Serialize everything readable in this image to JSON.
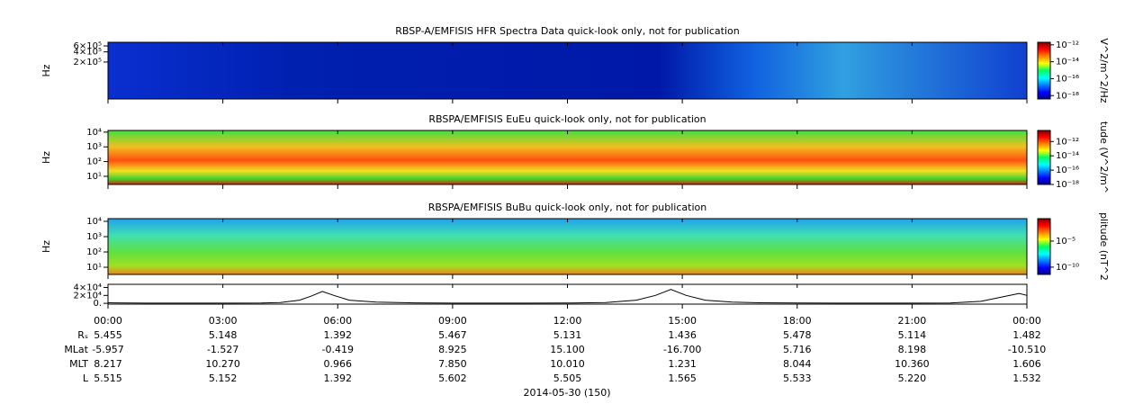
{
  "chart_data": [
    {
      "type": "spectrogram",
      "title": "RBSP-A/EMFISIS  HFR Spectra Data quick-look only, not for publication",
      "ylabel": "Hz",
      "log_y": true,
      "ylim": [
        16000,
        770000
      ],
      "yticks": [
        {
          "value": 600000,
          "label": "6×10⁵"
        },
        {
          "value": 400000,
          "label": "4×10⁵"
        },
        {
          "value": 200000,
          "label": "2×10⁵"
        }
      ],
      "colorbar": {
        "label": "V^2/m^2/Hz",
        "log": true,
        "clim": [
          4e-19,
          2e-12
        ],
        "ticks": [
          {
            "value": 1e-12,
            "label": "10⁻¹²"
          },
          {
            "value": 1e-14,
            "label": "10⁻¹⁴"
          },
          {
            "value": 1e-16,
            "label": "10⁻¹⁶"
          },
          {
            "value": 1e-18,
            "label": "10⁻¹⁸"
          }
        ]
      }
    },
    {
      "type": "spectrogram",
      "title": "RBSPA/EMFISIS  EuEu quick-look only, not for publication",
      "ylabel": "Hz",
      "log_y": true,
      "ylim": [
        2.8,
        13000
      ],
      "yticks": [
        {
          "value": 10000,
          "label": "10⁴"
        },
        {
          "value": 1000,
          "label": "10³"
        },
        {
          "value": 100,
          "label": "10²"
        },
        {
          "value": 10,
          "label": "10¹"
        }
      ],
      "colorbar": {
        "label": "tude (V^2/m^",
        "log": true,
        "clim": [
          1e-18,
          3.5e-11
        ],
        "ticks": [
          {
            "value": 1e-12,
            "label": "10⁻¹²"
          },
          {
            "value": 1e-14,
            "label": "10⁻¹⁴"
          },
          {
            "value": 1e-16,
            "label": "10⁻¹⁶"
          },
          {
            "value": 1e-18,
            "label": "10⁻¹⁸"
          }
        ]
      }
    },
    {
      "type": "spectrogram",
      "title": "RBSPA/EMFISIS  BuBu quick-look only, not for publication",
      "ylabel": "Hz",
      "log_y": true,
      "ylim": [
        3.4,
        15000
      ],
      "yticks": [
        {
          "value": 10000,
          "label": "10⁴"
        },
        {
          "value": 1000,
          "label": "10³"
        },
        {
          "value": 100,
          "label": "10²"
        },
        {
          "value": 10,
          "label": "10¹"
        }
      ],
      "colorbar": {
        "label": "plitude (nT^2",
        "log": true,
        "clim": [
          4e-12,
          0.2
        ],
        "ticks": [
          {
            "value": 1e-05,
            "label": "10⁻⁵"
          },
          {
            "value": 1e-10,
            "label": "10⁻¹⁰"
          }
        ]
      }
    },
    {
      "type": "line",
      "ylim": [
        -2000,
        48000
      ],
      "color": "#000000",
      "yticks": [
        {
          "value": 40000,
          "label": "4×10⁴"
        },
        {
          "value": 20000,
          "label": "2×10⁴"
        },
        {
          "value": 0,
          "label": "0."
        }
      ],
      "x": [
        0,
        1,
        2,
        3,
        4,
        4.5,
        5,
        5.3,
        5.6,
        5.9,
        6.3,
        7,
        8,
        9,
        10,
        11,
        12,
        13,
        13.8,
        14.3,
        14.7,
        15.1,
        15.6,
        16.3,
        17,
        18,
        19,
        20,
        21,
        22,
        22.8,
        23.3,
        23.8,
        24
      ],
      "values": [
        1500,
        600,
        400,
        400,
        800,
        2000,
        8000,
        18000,
        30000,
        20000,
        8000,
        3000,
        1200,
        600,
        500,
        600,
        800,
        2000,
        8000,
        20000,
        35000,
        20000,
        8000,
        3000,
        1500,
        800,
        500,
        500,
        600,
        1000,
        5000,
        15000,
        25000,
        20000
      ]
    }
  ],
  "time_axis": {
    "xlim": [
      0,
      24
    ],
    "xticks": [
      {
        "value": 0,
        "label": "00:00"
      },
      {
        "value": 3,
        "label": "03:00"
      },
      {
        "value": 6,
        "label": "06:00"
      },
      {
        "value": 9,
        "label": "09:00"
      },
      {
        "value": 12,
        "label": "12:00"
      },
      {
        "value": 15,
        "label": "15:00"
      },
      {
        "value": 18,
        "label": "18:00"
      },
      {
        "value": 21,
        "label": "21:00"
      },
      {
        "value": 24,
        "label": "00:00"
      }
    ]
  },
  "ephemeris": [
    {
      "label": "Rₛ",
      "values": [
        "5.455",
        "5.148",
        "1.392",
        "5.467",
        "5.131",
        "1.436",
        "5.478",
        "5.114",
        "1.482"
      ]
    },
    {
      "label": "MLat",
      "values": [
        "-5.957",
        "-1.527",
        "-0.419",
        "8.925",
        "15.100",
        "-16.700",
        "5.716",
        "8.198",
        "-10.510"
      ]
    },
    {
      "label": "MLT",
      "values": [
        "8.217",
        "10.270",
        "0.966",
        "7.850",
        "10.010",
        "1.231",
        "8.044",
        "10.360",
        "1.606"
      ]
    },
    {
      "label": "L",
      "values": [
        "5.515",
        "5.152",
        "1.392",
        "5.602",
        "5.505",
        "1.565",
        "5.533",
        "5.220",
        "1.532"
      ]
    }
  ],
  "date_label": "2014-05-30 (150)"
}
